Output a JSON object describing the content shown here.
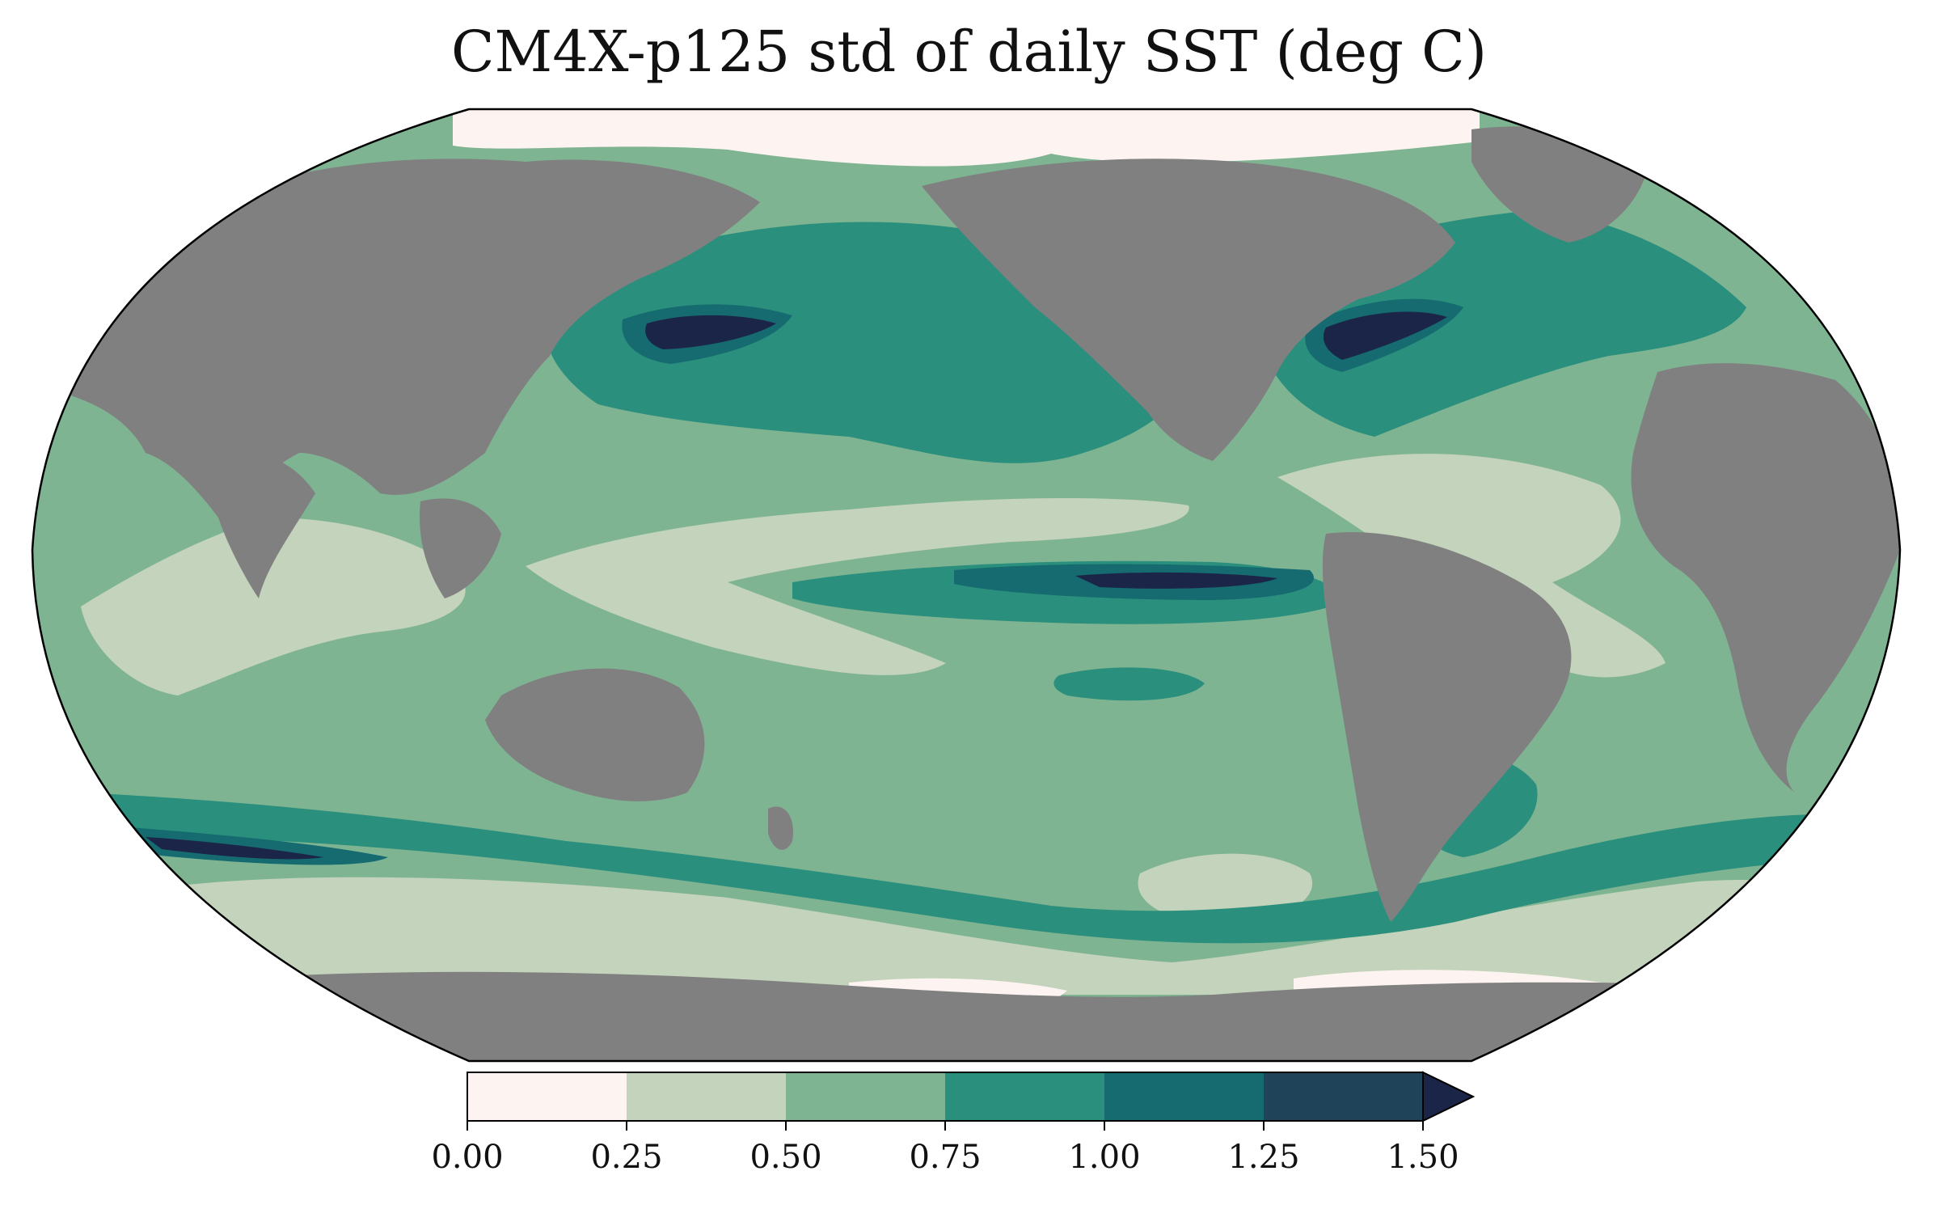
{
  "title": "CM4X-p125 std of daily SST (deg C)",
  "colorbar": {
    "ticks": [
      "0.00",
      "0.25",
      "0.50",
      "0.75",
      "1.00",
      "1.25",
      "1.50"
    ],
    "levels": [
      0.0,
      0.25,
      0.5,
      0.75,
      1.0,
      1.25,
      1.5
    ],
    "colors": [
      "#fdf4f1",
      "#c4d3bb",
      "#7fb492",
      "#2a8f7c",
      "#156b70",
      "#1f4358",
      "#1b2547"
    ],
    "extend": "max"
  },
  "map": {
    "projection": "Robinson",
    "land_color": "#808080",
    "ocean_colors": {
      "very_low": "#fdf4f1",
      "low": "#c4d3bb",
      "mid": "#7fb492",
      "high": "#2a8f7c",
      "very_high": "#156b70",
      "extreme": "#1f4358",
      "max": "#1b2547"
    }
  }
}
